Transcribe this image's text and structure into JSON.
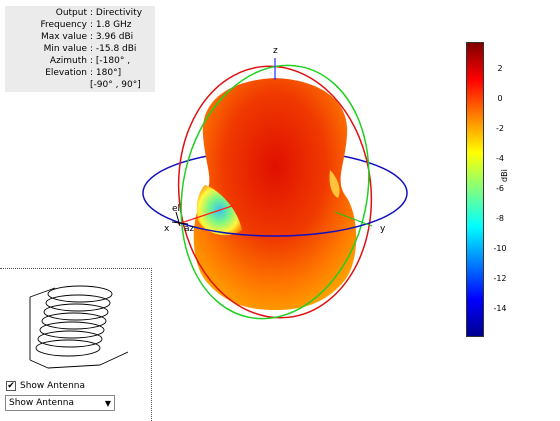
{
  "info": {
    "rows": [
      {
        "key": "Output",
        "value": ": Directivity"
      },
      {
        "key": "Frequency",
        "value": ": 1.8 GHz"
      },
      {
        "key": "Max value",
        "value": ": 3.96 dBi"
      },
      {
        "key": "Min value",
        "value": ": -15.8 dBi"
      },
      {
        "key": "Azimuth",
        "value": ": [-180° ,"
      },
      {
        "key": "Elevation",
        "value": ": 180°]"
      },
      {
        "key": "",
        "value": "[-90° , 90°]"
      }
    ]
  },
  "axes": {
    "x": "x",
    "y": "y",
    "z": "z",
    "el": "el",
    "az": "az"
  },
  "colorbar": {
    "unit": "dBi",
    "ticks": [
      "2",
      "0",
      "-2",
      "-4",
      "-6",
      "-8",
      "-10",
      "-12",
      "-14"
    ],
    "colors": [
      "#800000",
      "#ff0000",
      "#ff8000",
      "#ffff00",
      "#80ff80",
      "#00ffff",
      "#0080ff",
      "#0000ff",
      "#000090"
    ]
  },
  "controls": {
    "show_antenna_label": "Show Antenna",
    "show_antenna_checked": true,
    "select_value": "Show Antenna"
  }
}
